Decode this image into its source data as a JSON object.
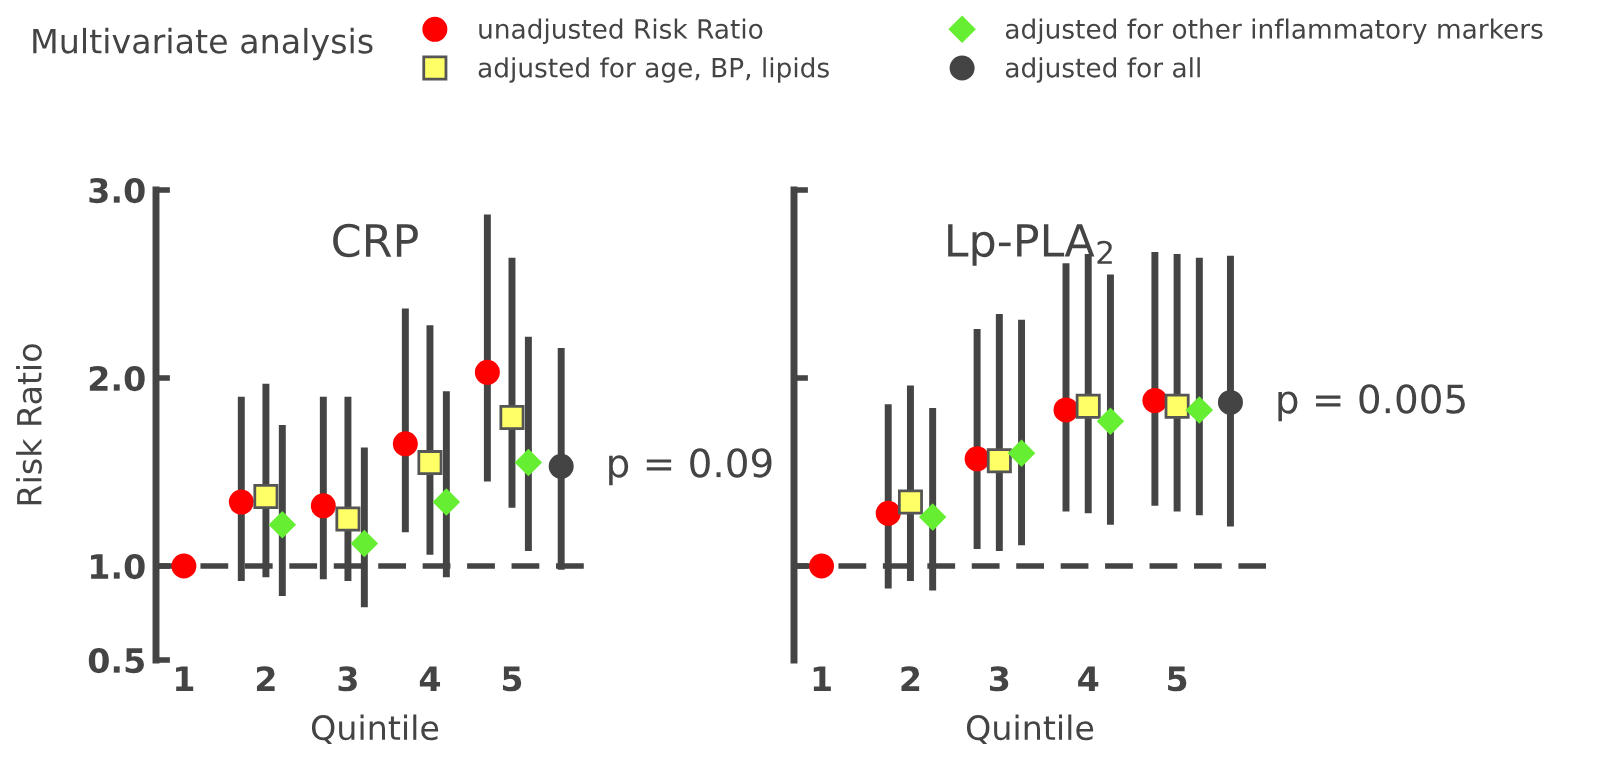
{
  "chart_data": [
    {
      "type": "scatter",
      "title": "CRP",
      "ylabel": "Risk Ratio",
      "xlabel": "Quintile",
      "legend": "top",
      "grid": false,
      "xlim": [
        0.66,
        6.0
      ],
      "xticks": [
        1,
        2,
        3,
        4,
        5
      ],
      "ylim": [
        0.5,
        3.0
      ],
      "yticks": [
        {
          "value": 0.5,
          "label": "0.5"
        },
        {
          "value": 1.0,
          "label": "1.0"
        },
        {
          "value": 2.0,
          "label": "2.0"
        },
        {
          "value": 3.0,
          "label": "3.0"
        }
      ],
      "ref_lines": [
        {
          "axis": "y",
          "value": 1.0,
          "line_style": "dashed",
          "color": "#444444"
        }
      ],
      "annotations": [
        "Multivariate analysis",
        {
          "text": "p = 0.09",
          "x": 5.6,
          "y": 1.53
        }
      ],
      "series": [
        {
          "name": "unadjusted Risk Ratio",
          "color": "#ff0000",
          "marker": "circle",
          "x": [
            1,
            1.7,
            2.7,
            3.7,
            4.7
          ],
          "values": [
            1.0,
            1.34,
            1.32,
            1.65,
            2.03
          ],
          "errors": [
            null,
            [
              0.92,
              1.9
            ],
            [
              0.93,
              1.9
            ],
            [
              1.18,
              2.37
            ],
            [
              1.45,
              2.87
            ]
          ]
        },
        {
          "name": "adjusted for age, BP, lipids",
          "color": "#ffff66",
          "marker": "square",
          "x": [
            2,
            3,
            4,
            5
          ],
          "values": [
            1.37,
            1.25,
            1.55,
            1.79
          ],
          "errors": [
            [
              0.94,
              1.97
            ],
            [
              0.92,
              1.9
            ],
            [
              1.06,
              2.28
            ],
            [
              1.31,
              2.64
            ]
          ]
        },
        {
          "name": "adjusted for other inflammatory markers",
          "color": "#66ee33",
          "marker": "diamond",
          "x": [
            2.2,
            3.2,
            4.2,
            5.2
          ],
          "values": [
            1.22,
            1.12,
            1.34,
            1.55
          ],
          "errors": [
            [
              0.84,
              1.75
            ],
            [
              0.78,
              1.63
            ],
            [
              0.94,
              1.93
            ],
            [
              1.08,
              2.22
            ]
          ]
        },
        {
          "name": "adjusted for all",
          "color": "#444444",
          "marker": "circle",
          "x": [
            5.6
          ],
          "values": [
            1.53
          ],
          "errors": [
            [
              0.98,
              2.16
            ]
          ]
        }
      ]
    },
    {
      "type": "scatter",
      "title": "Lp-PLA$_{2}$",
      "xlabel": "Quintile",
      "tick_labels": "x",
      "grid": false,
      "xlim": [
        0.69,
        6.0
      ],
      "xticks": [
        1,
        2,
        3,
        4,
        5
      ],
      "ylim": [
        0.5,
        3.0
      ],
      "yticks": [
        {
          "value": 1.0,
          "label": null
        },
        {
          "value": 2.0,
          "label": null
        },
        {
          "value": 3.0,
          "label": null
        }
      ],
      "ref_lines": [
        {
          "axis": "y",
          "value": 1.0,
          "line_style": "dashed",
          "color": "#444444"
        }
      ],
      "annotations": [
        {
          "text": "p = 0.005",
          "x": 5.6,
          "y": 1.87
        }
      ],
      "series": [
        {
          "color": "#ff0000",
          "marker": "circle",
          "x": [
            1,
            1.75,
            2.75,
            3.75,
            4.75
          ],
          "values": [
            1.0,
            1.28,
            1.57,
            1.83,
            1.88
          ],
          "errors": [
            null,
            [
              0.88,
              1.86
            ],
            [
              1.09,
              2.26
            ],
            [
              1.29,
              2.61
            ],
            [
              1.32,
              2.67
            ]
          ]
        },
        {
          "color": "#ffff66",
          "marker": "square",
          "x": [
            2,
            3,
            4,
            5
          ],
          "values": [
            1.34,
            1.56,
            1.85,
            1.85
          ],
          "errors": [
            [
              0.92,
              1.96
            ],
            [
              1.08,
              2.34
            ],
            [
              1.28,
              2.66
            ],
            [
              1.29,
              2.66
            ]
          ]
        },
        {
          "color": "#66ee33",
          "marker": "diamond",
          "x": [
            2.25,
            3.25,
            4.25,
            5.25
          ],
          "values": [
            1.26,
            1.6,
            1.77,
            1.83
          ],
          "errors": [
            [
              0.87,
              1.84
            ],
            [
              1.11,
              2.31
            ],
            [
              1.22,
              2.55
            ],
            [
              1.27,
              2.64
            ]
          ]
        },
        {
          "color": "#444444",
          "marker": "circle",
          "x": [
            5.6
          ],
          "values": [
            1.87
          ],
          "errors": [
            [
              1.21,
              2.65
            ]
          ]
        }
      ]
    }
  ]
}
